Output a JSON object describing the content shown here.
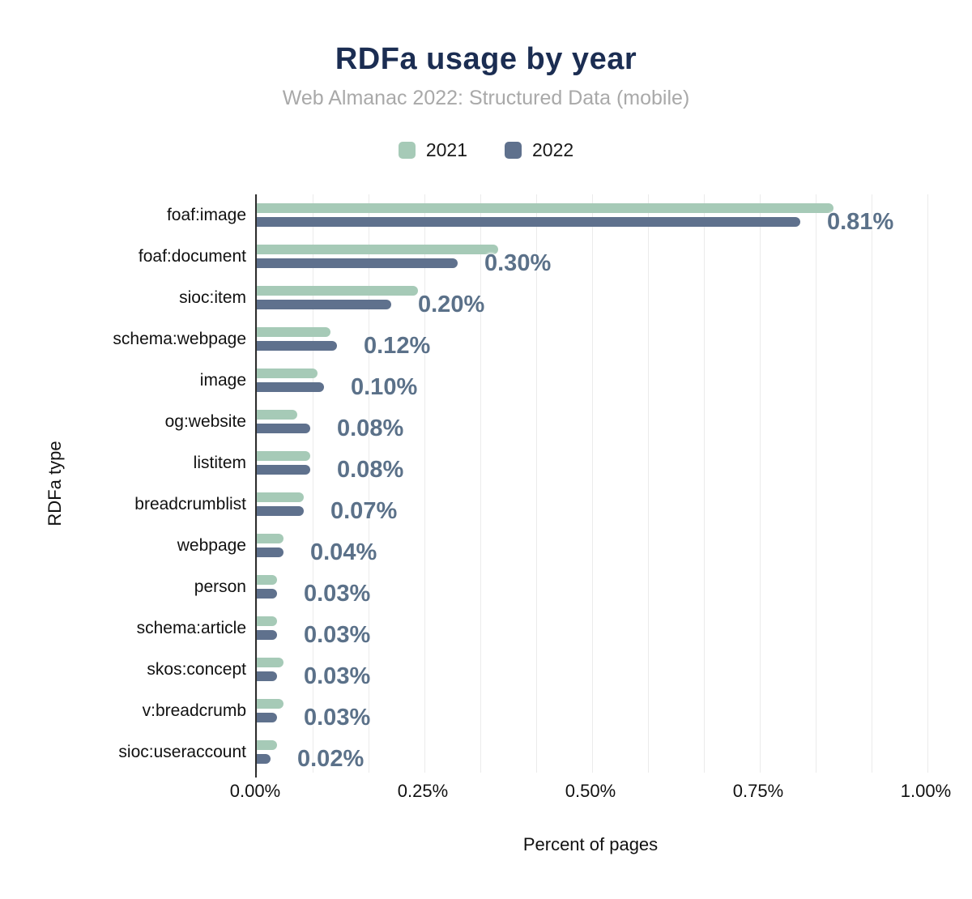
{
  "chart_data": {
    "type": "bar",
    "orientation": "horizontal",
    "title": "RDFa usage by year",
    "subtitle": "Web Almanac 2022: Structured Data (mobile)",
    "xlabel": "Percent of pages",
    "ylabel": "RDFa type",
    "xlim": [
      0,
      1.0
    ],
    "x_ticks": [
      {
        "value": 0.0,
        "label": "0.00%"
      },
      {
        "value": 0.25,
        "label": "0.25%"
      },
      {
        "value": 0.5,
        "label": "0.50%"
      },
      {
        "value": 0.75,
        "label": "0.75%"
      },
      {
        "value": 1.0,
        "label": "1.00%"
      }
    ],
    "grid": {
      "x_major_step": 0.25,
      "x_minor_divisions": 3,
      "horizontal": false
    },
    "legend_position": "top",
    "categories": [
      "foaf:image",
      "foaf:document",
      "sioc:item",
      "schema:webpage",
      "image",
      "og:website",
      "listitem",
      "breadcrumblist",
      "webpage",
      "person",
      "schema:article",
      "skos:concept",
      "v:breadcrumb",
      "sioc:useraccount"
    ],
    "series": [
      {
        "name": "2021",
        "color": "#a6cab7",
        "values": [
          0.86,
          0.36,
          0.24,
          0.11,
          0.09,
          0.06,
          0.08,
          0.07,
          0.04,
          0.03,
          0.03,
          0.04,
          0.04,
          0.03
        ]
      },
      {
        "name": "2022",
        "color": "#5f718d",
        "values": [
          0.81,
          0.3,
          0.2,
          0.12,
          0.1,
          0.08,
          0.08,
          0.07,
          0.04,
          0.03,
          0.03,
          0.03,
          0.03,
          0.02
        ]
      }
    ],
    "data_labels": {
      "labelled_series": "2022",
      "values": [
        "0.81%",
        "0.30%",
        "0.20%",
        "0.12%",
        "0.10%",
        "0.08%",
        "0.08%",
        "0.07%",
        "0.04%",
        "0.03%",
        "0.03%",
        "0.03%",
        "0.03%",
        "0.02%"
      ],
      "color": "#5b7189"
    }
  },
  "colors": {
    "title": "#1b2d52",
    "subtitle": "#a9a9a9",
    "axis_line": "#2d2d2d",
    "gridline": "#ebebeb",
    "series_2021": "#a6cab7",
    "series_2022": "#5f718d",
    "value_label": "#5b7189"
  }
}
